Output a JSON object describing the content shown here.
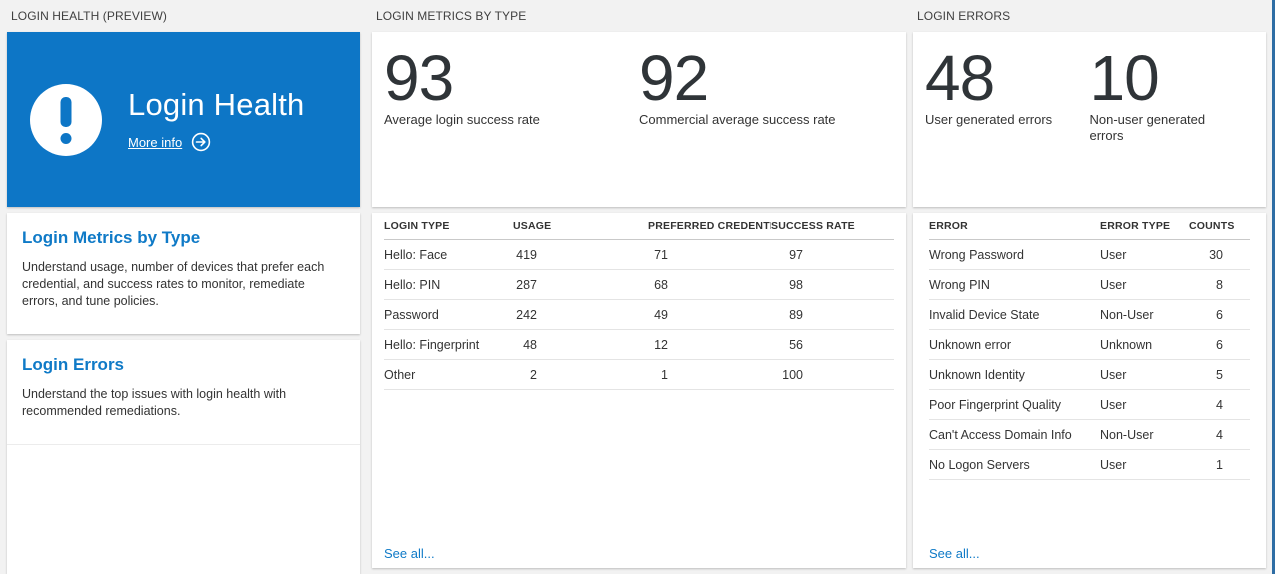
{
  "colors": {
    "accent": "#0d76c6",
    "link": "#0f7ac7",
    "edge": "#2e6da4"
  },
  "columns": {
    "health": {
      "section_title": "LOGIN HEALTH (PREVIEW)",
      "hero": {
        "title": "Login Health",
        "more_info_label": "More info",
        "icon": "exclamation-icon",
        "arrow_icon": "arrow-right-circle-icon"
      },
      "items": [
        {
          "title": "Login Metrics by Type",
          "description": "Understand usage, number of devices that prefer each credential, and success rates to monitor, remediate errors, and tune policies."
        },
        {
          "title": "Login Errors",
          "description": "Understand the top issues with login health with recommended remediations."
        }
      ]
    },
    "metrics": {
      "section_title": "LOGIN METRICS BY TYPE",
      "stats": [
        {
          "value": "93",
          "label": "Average login success rate"
        },
        {
          "value": "92",
          "label": "Commercial average success rate"
        }
      ],
      "table": {
        "columns": [
          "LOGIN TYPE",
          "USAGE",
          "PREFERRED CREDENTIAL",
          "SUCCESS RATE"
        ],
        "rows": [
          [
            "Hello: Face",
            "419",
            "71",
            "97"
          ],
          [
            "Hello: PIN",
            "287",
            "68",
            "98"
          ],
          [
            "Password",
            "242",
            "49",
            "89"
          ],
          [
            "Hello: Fingerprint",
            "48",
            "12",
            "56"
          ],
          [
            "Other",
            "2",
            "1",
            "100"
          ]
        ]
      },
      "see_all": "See all..."
    },
    "errors": {
      "section_title": "LOGIN ERRORS",
      "stats": [
        {
          "value": "48",
          "label": "User generated errors"
        },
        {
          "value": "10",
          "label": "Non-user generated errors"
        }
      ],
      "table": {
        "columns": [
          "ERROR",
          "ERROR TYPE",
          "COUNTS"
        ],
        "rows": [
          [
            "Wrong Password",
            "User",
            "30"
          ],
          [
            "Wrong PIN",
            "User",
            "8"
          ],
          [
            "Invalid Device State",
            "Non-User",
            "6"
          ],
          [
            "Unknown error",
            "Unknown",
            "6"
          ],
          [
            "Unknown Identity",
            "User",
            "5"
          ],
          [
            "Poor Fingerprint Quality",
            "User",
            "4"
          ],
          [
            "Can't Access Domain Info",
            "Non-User",
            "4"
          ],
          [
            "No Logon Servers",
            "User",
            "1"
          ]
        ]
      },
      "see_all": "See all..."
    }
  }
}
